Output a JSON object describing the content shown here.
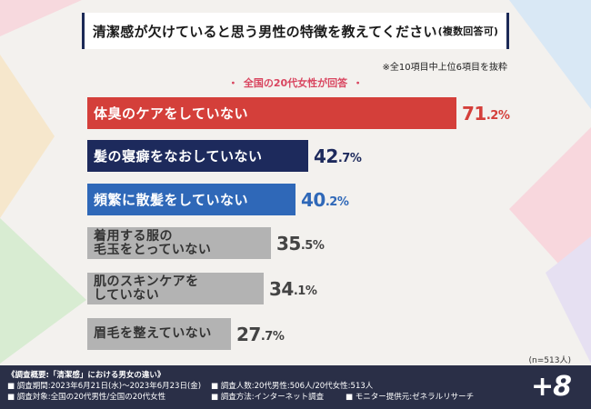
{
  "title": "清潔感が欠けていると思う男性の特徴を教えてください",
  "title_suffix": "(複数回答可)",
  "note": "※全10項目中上位6項目を抜粋",
  "legend": "全国の20代女性が回答",
  "legend_dot": "・",
  "sample_note": "(n=513人)",
  "chart_data": {
    "type": "bar",
    "orientation": "horizontal",
    "title": "清潔感が欠けていると思う男性の特徴を教えてください(複数回答可)",
    "xlim": [
      0,
      100
    ],
    "unit": "%",
    "categories": [
      "体臭のケアをしていない",
      "髪の寝癖をなおしていない",
      "頻繁に散髪をしていない",
      "着用する服の毛玉をとっていない",
      "肌のスキンケアをしていない",
      "眉毛を整えていない"
    ],
    "category_lines": [
      [
        "体臭のケアをしていない"
      ],
      [
        "髪の寝癖をなおしていない"
      ],
      [
        "頻繁に散髪をしていない"
      ],
      [
        "着用する服の",
        "毛玉をとっていない"
      ],
      [
        "肌のスキンケアを",
        "していない"
      ],
      [
        "眉毛を整えていない"
      ]
    ],
    "values": [
      71.2,
      42.7,
      40.2,
      35.5,
      34.1,
      27.7
    ],
    "value_int": [
      "71",
      "42",
      "40",
      "35",
      "34",
      "27"
    ],
    "value_dec": [
      ".2%",
      ".7%",
      ".2%",
      ".5%",
      ".1%",
      ".7%"
    ],
    "colors": [
      "#d43f3a",
      "#1d2a5c",
      "#2f68b8",
      "#b3b3b3",
      "#b3b3b3",
      "#b3b3b3"
    ],
    "value_colors": [
      "#d43f3a",
      "#1d2a5c",
      "#2f68b8",
      "#444444",
      "#444444",
      "#444444"
    ]
  },
  "footer": {
    "heading": "《調査概要:「清潔感」における男女の違い》",
    "period": "■ 調査期間:2023年6月21日(水)〜2023年6月23日(金)",
    "target": "■ 調査対象:全国の20代男性/全国の20代女性",
    "respondents": "■ 調査人数:20代男性:506人/20代女性:513人",
    "method": "■ 調査方法:インターネット調査",
    "provider": "■ モニター提供元:ゼネラルリサーチ",
    "brand": "+8"
  }
}
